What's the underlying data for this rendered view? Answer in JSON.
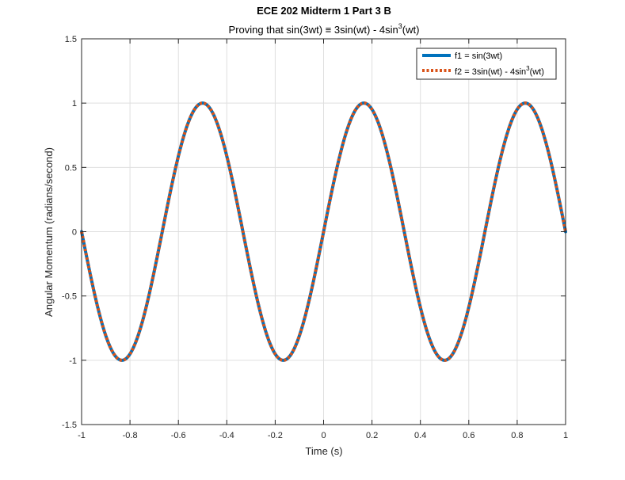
{
  "chart_data": {
    "type": "line",
    "title": "ECE 202 Midterm 1 Part 3 B",
    "subtitle": {
      "prefix": "Proving that sin(3wt) ",
      "symbol": "≡",
      "middle": " 3sin(wt) - 4sin",
      "superscript": "3",
      "suffix": "(wt)"
    },
    "xlabel": "Time (s)",
    "ylabel": "Angular Momentum (radians/second)",
    "xlim": [
      -1,
      1
    ],
    "ylim": [
      -1.5,
      1.5
    ],
    "xticks": [
      -1,
      -0.8,
      -0.6,
      -0.4,
      -0.2,
      0,
      0.2,
      0.4,
      0.6,
      0.8,
      1
    ],
    "xtick_labels": [
      "-1",
      "-0.8",
      "-0.6",
      "-0.4",
      "-0.2",
      "0",
      "0.2",
      "0.4",
      "0.6",
      "0.8",
      "1"
    ],
    "yticks": [
      -1.5,
      -1,
      -0.5,
      0,
      0.5,
      1,
      1.5
    ],
    "ytick_labels": [
      "-1.5",
      "-1",
      "-0.5",
      "0",
      "0.5",
      "1",
      "1.5"
    ],
    "grid": true,
    "legend_position": "top-right",
    "series": [
      {
        "name": "f1 = sin(3wt)",
        "formula": "sin(3*pi*t)",
        "style": "solid",
        "color": "#0072BD",
        "x": [
          -1,
          -0.9167,
          -0.8333,
          -0.75,
          -0.6667,
          -0.5833,
          -0.5,
          -0.4167,
          -0.3333,
          -0.25,
          -0.1667,
          -0.0833,
          0,
          0.0833,
          0.1667,
          0.25,
          0.3333,
          0.4167,
          0.5,
          0.5833,
          0.6667,
          0.75,
          0.8333,
          0.9167,
          1
        ],
        "y": [
          0,
          -0.707,
          -1,
          -0.707,
          0,
          0.707,
          1,
          0.707,
          0,
          -0.707,
          -1,
          -0.707,
          0,
          0.707,
          1,
          0.707,
          0,
          -0.707,
          -1,
          -0.707,
          0,
          0.707,
          1,
          0.707,
          0
        ]
      },
      {
        "name_prefix": "f2 = 3sin(wt) - 4sin",
        "name_superscript": "3",
        "name_suffix": "(wt)",
        "formula": "3*sin(pi*t) - 4*sin(pi*t)^3",
        "style": "dotted",
        "color": "#D95319",
        "x": [
          -1,
          -0.9167,
          -0.8333,
          -0.75,
          -0.6667,
          -0.5833,
          -0.5,
          -0.4167,
          -0.3333,
          -0.25,
          -0.1667,
          -0.0833,
          0,
          0.0833,
          0.1667,
          0.25,
          0.3333,
          0.4167,
          0.5,
          0.5833,
          0.6667,
          0.75,
          0.8333,
          0.9167,
          1
        ],
        "y": [
          0,
          -0.707,
          -1,
          -0.707,
          0,
          0.707,
          1,
          0.707,
          0,
          -0.707,
          -1,
          -0.707,
          0,
          0.707,
          1,
          0.707,
          0,
          -0.707,
          -1,
          -0.707,
          0,
          0.707,
          1,
          0.707,
          0
        ]
      }
    ]
  }
}
